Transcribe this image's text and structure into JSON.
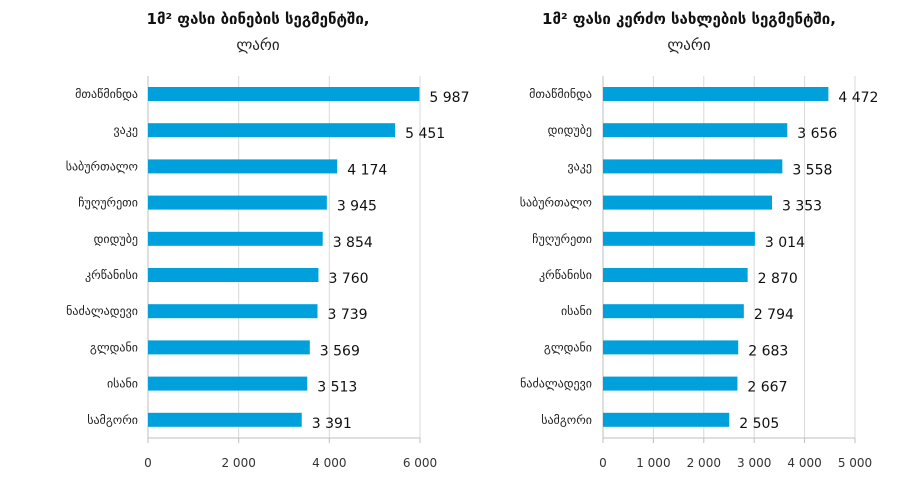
{
  "chart_data": [
    {
      "type": "bar",
      "orientation": "horizontal",
      "title": "1მ² ფასი ბინების სეგმენტში,",
      "subtitle": "ლარი",
      "categories": [
        "მთაწმინდა",
        "ვაკე",
        "საბურთალო",
        "ჩუღურეთი",
        "დიდუბე",
        "კრწანისი",
        "ნაძალადევი",
        "გლდანი",
        "ისანი",
        "სამგორი"
      ],
      "values": [
        5987,
        5451,
        4174,
        3945,
        3854,
        3760,
        3739,
        3569,
        3513,
        3391
      ],
      "value_labels": [
        "5 987",
        "5 451",
        "4 174",
        "3 945",
        "3 854",
        "3 760",
        "3 739",
        "3 569",
        "3 513",
        "3 391"
      ],
      "xlim": [
        0,
        6000
      ],
      "ticks": [
        0,
        2000,
        4000,
        6000
      ],
      "tick_labels": [
        "0",
        "2 000",
        "4 000",
        "6 000"
      ],
      "grid": true,
      "color": "#00a0dc"
    },
    {
      "type": "bar",
      "orientation": "horizontal",
      "title": "1მ² ფასი კერძო სახლების სეგმენტში,",
      "subtitle": "ლარი",
      "categories": [
        "მთაწმინდა",
        "დიდუბე",
        "ვაკე",
        "საბურთალო",
        "ჩუღურეთი",
        "კრწანისი",
        "ისანი",
        "გლდანი",
        "ნაძალადევი",
        "სამგორი"
      ],
      "values": [
        4472,
        3656,
        3558,
        3353,
        3014,
        2870,
        2794,
        2683,
        2667,
        2505
      ],
      "value_labels": [
        "4 472",
        "3 656",
        "3 558",
        "3 353",
        "3 014",
        "2 870",
        "2 794",
        "2 683",
        "2 667",
        "2 505"
      ],
      "xlim": [
        0,
        5000
      ],
      "ticks": [
        0,
        1000,
        2000,
        3000,
        4000,
        5000
      ],
      "tick_labels": [
        "0",
        "1 000",
        "2 000",
        "3 000",
        "4 000",
        "5 000"
      ],
      "grid": true,
      "color": "#00a0dc"
    }
  ]
}
